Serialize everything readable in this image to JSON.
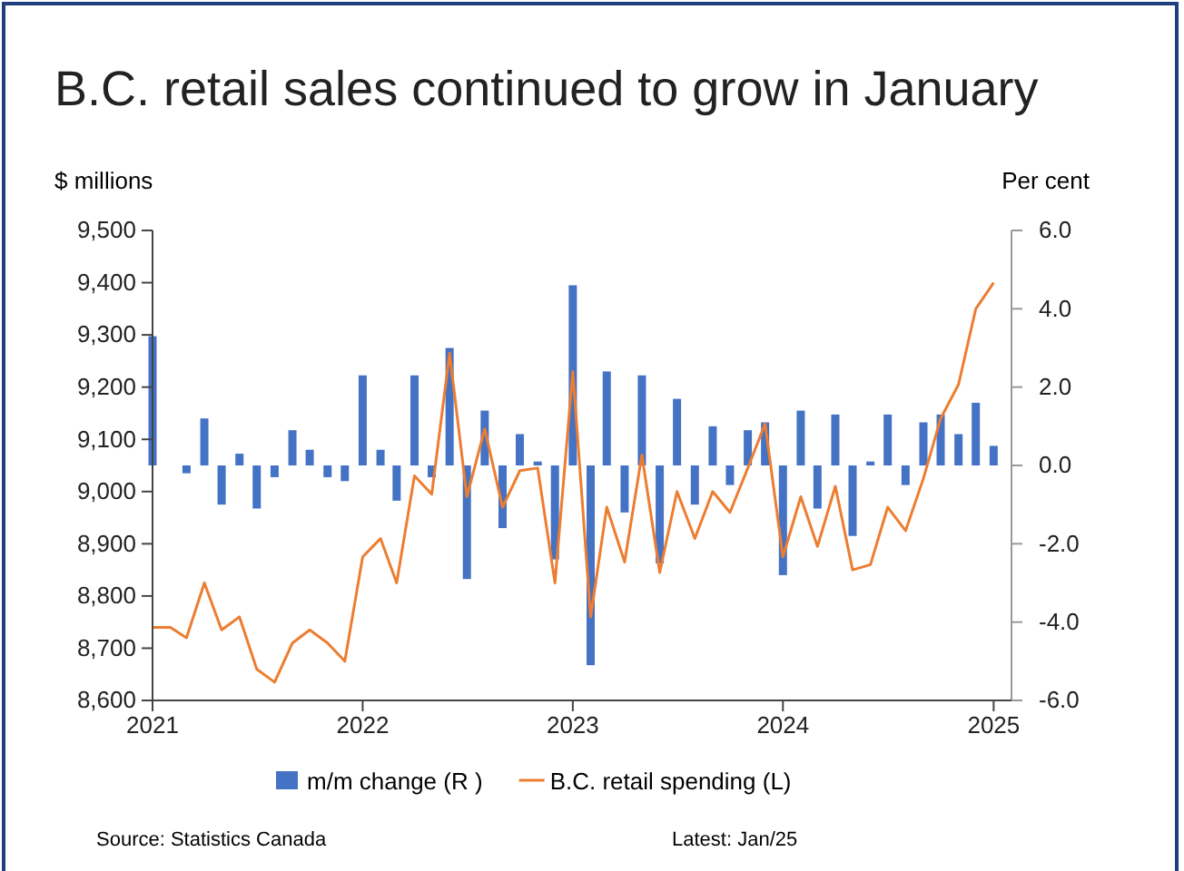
{
  "chart_data": {
    "type": "line",
    "title": "B.C. retail sales continued to grow in January",
    "ylabel": "$ millions",
    "y2label": "Per cent",
    "annotations": [
      "Source: Statistics Canada",
      "Latest: Jan/25"
    ],
    "x": [
      "2021-01",
      "2021-02",
      "2021-03",
      "2021-04",
      "2021-05",
      "2021-06",
      "2021-07",
      "2021-08",
      "2021-09",
      "2021-10",
      "2021-11",
      "2021-12",
      "2022-01",
      "2022-02",
      "2022-03",
      "2022-04",
      "2022-05",
      "2022-06",
      "2022-07",
      "2022-08",
      "2022-09",
      "2022-10",
      "2022-11",
      "2022-12",
      "2023-01",
      "2023-02",
      "2023-03",
      "2023-04",
      "2023-05",
      "2023-06",
      "2023-07",
      "2023-08",
      "2023-09",
      "2023-10",
      "2023-11",
      "2023-12",
      "2024-01",
      "2024-02",
      "2024-03",
      "2024-04",
      "2024-05",
      "2024-06",
      "2024-07",
      "2024-08",
      "2024-09",
      "2024-10",
      "2024-11",
      "2024-12",
      "2025-01"
    ],
    "series": [
      {
        "name": "m/m change (R )",
        "type": "bar",
        "axis": "y2",
        "color": "#4472c4",
        "values": [
          3.3,
          0.0,
          -0.2,
          1.2,
          -1.0,
          0.3,
          -1.1,
          -0.3,
          0.9,
          0.4,
          -0.3,
          -0.4,
          2.3,
          0.4,
          -0.9,
          2.3,
          -0.3,
          3.0,
          -2.9,
          1.4,
          -1.6,
          0.8,
          0.1,
          -2.4,
          4.6,
          -5.1,
          2.4,
          -1.2,
          2.3,
          -2.5,
          1.7,
          -1.0,
          1.0,
          -0.5,
          0.9,
          1.1,
          -2.8,
          1.4,
          -1.1,
          1.3,
          -1.8,
          0.1,
          1.3,
          -0.5,
          1.1,
          1.3,
          0.8,
          1.6,
          0.5
        ]
      },
      {
        "name": "B.C. retail spending (L)",
        "color": "#ed7d31",
        "values": [
          8740,
          8740,
          8720,
          8825,
          8735,
          8760,
          8660,
          8635,
          8710,
          8735,
          8710,
          8675,
          8875,
          8910,
          8825,
          9030,
          8995,
          9265,
          8990,
          9120,
          8970,
          9040,
          9045,
          8825,
          9230,
          8760,
          8970,
          8865,
          9070,
          8845,
          9000,
          8910,
          9000,
          8960,
          9045,
          9130,
          8875,
          8990,
          8895,
          9010,
          8850,
          8860,
          8970,
          8925,
          9025,
          9140,
          9205,
          9350,
          9400
        ]
      }
    ],
    "xlim": [
      "2021-01",
      "2025-02"
    ],
    "xticks": [
      {
        "value": "2021-01",
        "label": "2021"
      },
      {
        "value": "2022-01",
        "label": "2022"
      },
      {
        "value": "2023-01",
        "label": "2023"
      },
      {
        "value": "2024-01",
        "label": "2024"
      },
      {
        "value": "2025-01",
        "label": "2025"
      }
    ],
    "ylim": [
      8600,
      9500
    ],
    "yticks": [
      {
        "value": 8600,
        "label": "8,600"
      },
      {
        "value": 8700,
        "label": "8,700"
      },
      {
        "value": 8800,
        "label": "8,800"
      },
      {
        "value": 8900,
        "label": "8,900"
      },
      {
        "value": 9000,
        "label": "9,000"
      },
      {
        "value": 9100,
        "label": "9,100"
      },
      {
        "value": 9200,
        "label": "9,200"
      },
      {
        "value": 9300,
        "label": "9,300"
      },
      {
        "value": 9400,
        "label": "9,400"
      },
      {
        "value": 9500,
        "label": "9,500"
      }
    ],
    "y2lim": [
      -6,
      6
    ],
    "y2ticks": [
      {
        "value": -6,
        "label": "-6.0"
      },
      {
        "value": -4,
        "label": "-4.0"
      },
      {
        "value": -2,
        "label": "-2.0"
      },
      {
        "value": 0,
        "label": "0.0"
      },
      {
        "value": 2,
        "label": "2.0"
      },
      {
        "value": 4,
        "label": "4.0"
      },
      {
        "value": 6,
        "label": "6.0"
      }
    ],
    "legend": "bottom",
    "grid": false
  }
}
